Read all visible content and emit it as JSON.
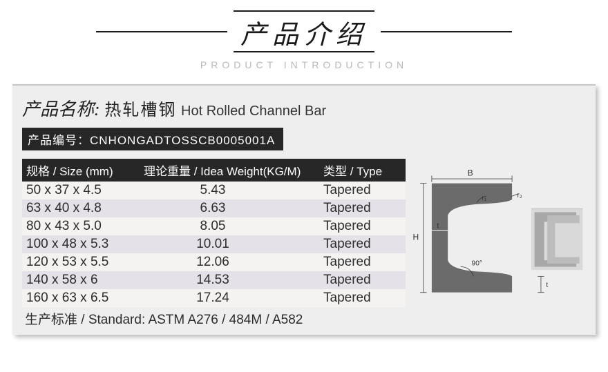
{
  "header": {
    "title_cn": "产品介绍",
    "title_en": "PRODUCT INTRODUCTION"
  },
  "product": {
    "label_prefix": "产品名称:",
    "name_cn": "热轧槽钢",
    "name_en": "Hot Rolled Channel Bar",
    "code_label": "产品编号：",
    "code_value": "CNHONGADTOSSCB0005001A"
  },
  "table": {
    "header": {
      "col1": "规格 / Size (mm)",
      "col2": "理论重量 / Idea Weight(KG/M)",
      "col3": "类型 / Type"
    },
    "rows": [
      {
        "size": "50 x 37 x 4.5",
        "weight": "5.43",
        "type": "Tapered"
      },
      {
        "size": "63 x 40 x 4.8",
        "weight": "6.63",
        "type": "Tapered"
      },
      {
        "size": "80 x 43 x 5.0",
        "weight": "8.05",
        "type": "Tapered"
      },
      {
        "size": "100 x 48 x 5.3",
        "weight": "10.01",
        "type": "Tapered"
      },
      {
        "size": "120 x 53 x 5.5",
        "weight": "12.06",
        "type": "Tapered"
      },
      {
        "size": "140 x 58 x 6",
        "weight": "14.53",
        "type": "Tapered"
      },
      {
        "size": "160 x 63 x 6.5",
        "weight": "17.24",
        "type": "Tapered"
      }
    ],
    "standard": "生产标准 / Standard: ASTM A276 / 484M / A582"
  },
  "diagram": {
    "label_B": "B",
    "label_H": "H",
    "label_t": "t",
    "label_t2": "t",
    "label_r1": "r₁",
    "label_r2": "r₂",
    "angle": "90°",
    "profile_fill": "#6b6b6b",
    "line_color": "#555555",
    "text_color": "#333333"
  },
  "colors": {
    "panel_bg": "#efeeee",
    "header_dark": "#272727",
    "row_odd": "#f4f3f2",
    "row_even": "#e4e1e8"
  }
}
